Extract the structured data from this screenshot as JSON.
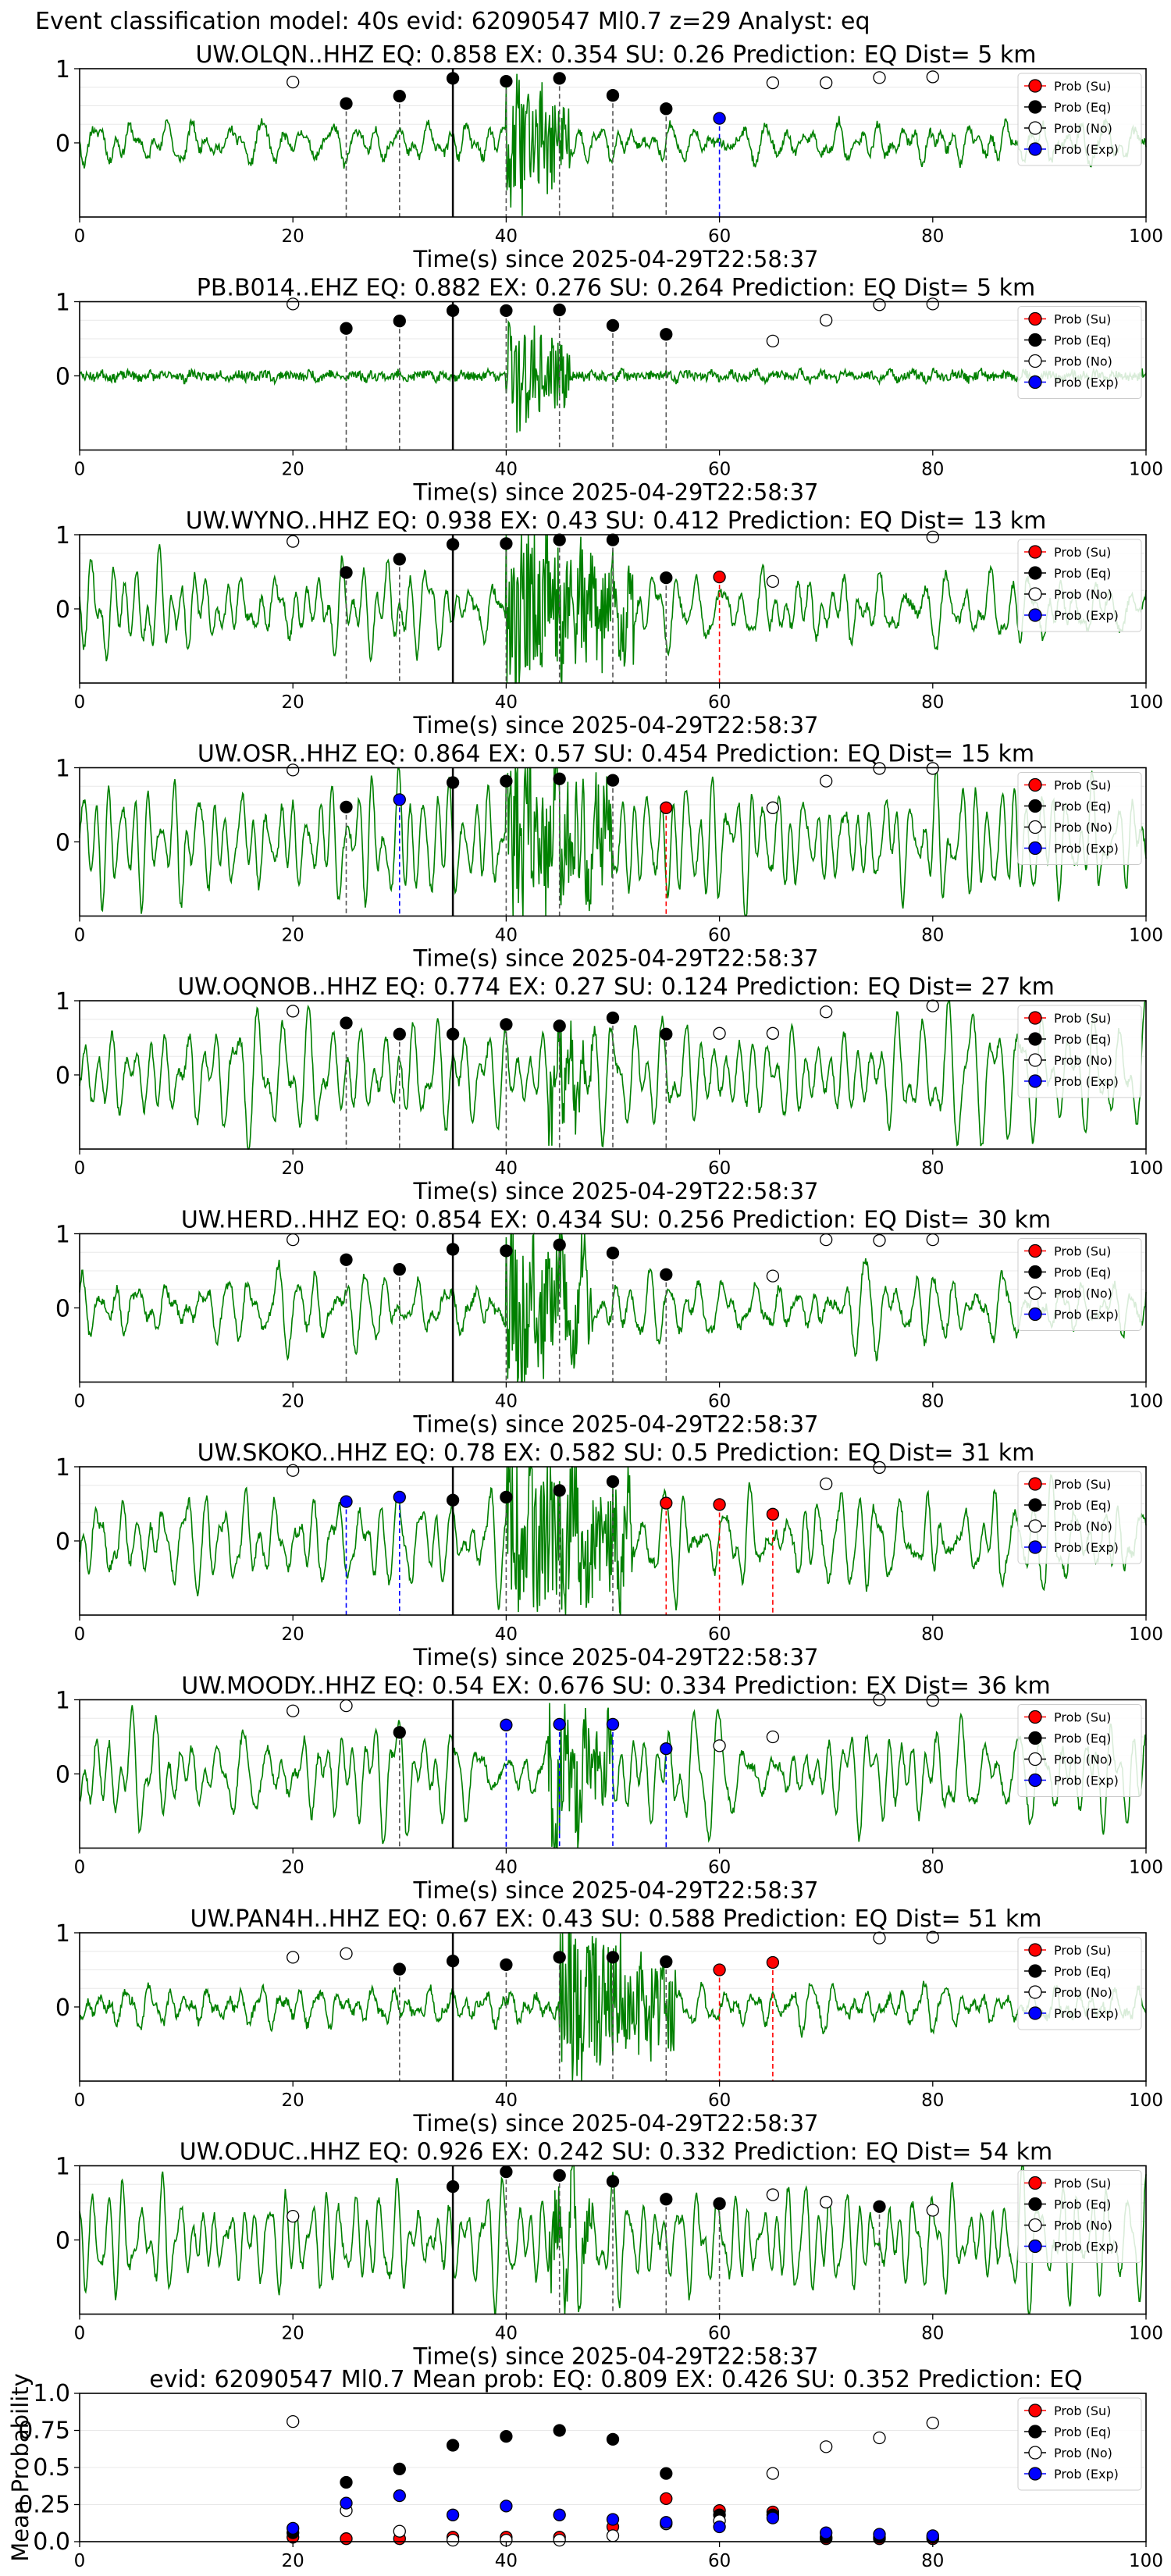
{
  "figure": {
    "suptitle": "Event classification model: 40s evid: 62090547 Ml0.7 z=29 Analyst: eq"
  },
  "legend_labels": [
    "Prob (Su)",
    "Prob (Eq)",
    "Prob (No)",
    "Prob (Exp)"
  ],
  "colors": {
    "su": "#ff0000",
    "eq": "#000000",
    "no": "#ffffff",
    "exp": "#0000ff",
    "waveform": "#008000"
  },
  "chart_data": [
    {
      "type": "line",
      "station": "UW.OLQN..HHZ",
      "title": "UW.OLQN..HHZ   EQ: 0.858  EX: 0.354  SU: 0.26   Prediction: EQ    Dist= 5 km",
      "xlabel": "Time(s) since 2025-04-29T22:58:37",
      "xlim": [
        0,
        100
      ],
      "xticks": [
        0,
        20,
        40,
        60,
        80,
        100
      ],
      "ylim": [
        -1,
        1
      ],
      "yticks": [
        0,
        1
      ],
      "origin_time": 35,
      "burst": [
        40,
        46
      ],
      "noise_level": 0.3,
      "burst_amp": 0.85,
      "seed": 11,
      "points": [
        {
          "t": 20,
          "p": 0.82,
          "c": "no"
        },
        {
          "t": 25,
          "p": 0.53,
          "c": "eq",
          "line": true
        },
        {
          "t": 30,
          "p": 0.63,
          "c": "eq",
          "line": true
        },
        {
          "t": 35,
          "p": 0.87,
          "c": "eq"
        },
        {
          "t": 40,
          "p": 0.83,
          "c": "eq",
          "line": true
        },
        {
          "t": 45,
          "p": 0.87,
          "c": "eq",
          "line": true
        },
        {
          "t": 50,
          "p": 0.64,
          "c": "eq",
          "line": true
        },
        {
          "t": 55,
          "p": 0.46,
          "c": "eq",
          "line": true
        },
        {
          "t": 60,
          "p": 0.33,
          "c": "exp",
          "line": true
        },
        {
          "t": 65,
          "p": 0.81,
          "c": "no"
        },
        {
          "t": 70,
          "p": 0.81,
          "c": "no"
        },
        {
          "t": 75,
          "p": 0.88,
          "c": "no"
        },
        {
          "t": 80,
          "p": 0.89,
          "c": "no"
        }
      ]
    },
    {
      "type": "line",
      "station": "PB.B014..EHZ",
      "title": "PB.B014..EHZ   EQ: 0.882  EX: 0.276  SU: 0.264   Prediction: EQ    Dist= 5 km",
      "xlabel": "Time(s) since 2025-04-29T22:58:37",
      "xlim": [
        0,
        100
      ],
      "xticks": [
        0,
        20,
        40,
        60,
        80,
        100
      ],
      "ylim": [
        -1,
        1
      ],
      "yticks": [
        0,
        1
      ],
      "origin_time": 35,
      "burst": [
        40,
        46
      ],
      "noise_level": 0.05,
      "burst_amp": 0.7,
      "seed": 23,
      "points": [
        {
          "t": 20,
          "p": 0.97,
          "c": "no"
        },
        {
          "t": 25,
          "p": 0.64,
          "c": "eq",
          "line": true
        },
        {
          "t": 30,
          "p": 0.74,
          "c": "eq",
          "line": true
        },
        {
          "t": 35,
          "p": 0.88,
          "c": "eq"
        },
        {
          "t": 40,
          "p": 0.88,
          "c": "eq",
          "line": true
        },
        {
          "t": 45,
          "p": 0.89,
          "c": "eq",
          "line": true
        },
        {
          "t": 50,
          "p": 0.68,
          "c": "eq",
          "line": true
        },
        {
          "t": 55,
          "p": 0.56,
          "c": "eq",
          "line": true
        },
        {
          "t": 65,
          "p": 0.47,
          "c": "no"
        },
        {
          "t": 70,
          "p": 0.75,
          "c": "no"
        },
        {
          "t": 75,
          "p": 0.96,
          "c": "no"
        },
        {
          "t": 80,
          "p": 0.97,
          "c": "no"
        }
      ]
    },
    {
      "type": "line",
      "station": "UW.WYNO..HHZ",
      "title": "UW.WYNO..HHZ   EQ: 0.938  EX: 0.43  SU: 0.412   Prediction: EQ    Dist= 13 km",
      "xlabel": "Time(s) since 2025-04-29T22:58:37",
      "xlim": [
        0,
        100
      ],
      "xticks": [
        0,
        20,
        40,
        60,
        80,
        100
      ],
      "ylim": [
        -1,
        1
      ],
      "yticks": [
        0,
        1
      ],
      "origin_time": 35,
      "burst": [
        40,
        52
      ],
      "noise_level": 0.7,
      "burst_amp": 1.0,
      "seed": 37,
      "points": [
        {
          "t": 20,
          "p": 0.91,
          "c": "no"
        },
        {
          "t": 25,
          "p": 0.49,
          "c": "eq",
          "line": true
        },
        {
          "t": 30,
          "p": 0.67,
          "c": "eq",
          "line": true
        },
        {
          "t": 35,
          "p": 0.87,
          "c": "eq"
        },
        {
          "t": 40,
          "p": 0.88,
          "c": "eq",
          "line": true
        },
        {
          "t": 45,
          "p": 0.93,
          "c": "eq",
          "line": true
        },
        {
          "t": 50,
          "p": 0.93,
          "c": "eq",
          "line": true
        },
        {
          "t": 55,
          "p": 0.42,
          "c": "eq",
          "line": true
        },
        {
          "t": 60,
          "p": 0.43,
          "c": "su",
          "line": true
        },
        {
          "t": 65,
          "p": 0.37,
          "c": "no"
        },
        {
          "t": 80,
          "p": 0.97,
          "c": "no"
        }
      ]
    },
    {
      "type": "line",
      "station": "UW.OSR..HHZ",
      "title": "UW.OSR..HHZ   EQ: 0.864  EX: 0.57  SU: 0.454   Prediction: EQ    Dist= 15 km",
      "xlabel": "Time(s) since 2025-04-29T22:58:37",
      "xlim": [
        0,
        100
      ],
      "xticks": [
        0,
        20,
        40,
        60,
        80,
        100
      ],
      "ylim": [
        -1,
        1
      ],
      "yticks": [
        0,
        1
      ],
      "origin_time": 35,
      "burst": [
        40,
        50
      ],
      "noise_level": 0.75,
      "burst_amp": 0.9,
      "seed": 41,
      "points": [
        {
          "t": 20,
          "p": 0.97,
          "c": "no"
        },
        {
          "t": 25,
          "p": 0.47,
          "c": "eq",
          "line": true
        },
        {
          "t": 30,
          "p": 0.57,
          "c": "exp",
          "line": true
        },
        {
          "t": 35,
          "p": 0.8,
          "c": "eq"
        },
        {
          "t": 40,
          "p": 0.82,
          "c": "eq",
          "line": true
        },
        {
          "t": 45,
          "p": 0.85,
          "c": "eq",
          "line": true
        },
        {
          "t": 50,
          "p": 0.83,
          "c": "eq",
          "line": true
        },
        {
          "t": 55,
          "p": 0.46,
          "c": "su",
          "line": true
        },
        {
          "t": 65,
          "p": 0.46,
          "c": "no"
        },
        {
          "t": 70,
          "p": 0.82,
          "c": "no"
        },
        {
          "t": 75,
          "p": 0.99,
          "c": "no"
        },
        {
          "t": 80,
          "p": 0.99,
          "c": "no"
        }
      ]
    },
    {
      "type": "line",
      "station": "UW.OQNOB..HHZ",
      "title": "UW.OQNOB..HHZ   EQ: 0.774  EX: 0.27  SU: 0.124   Prediction: EQ    Dist= 27 km",
      "xlabel": "Time(s) since 2025-04-29T22:58:37",
      "xlim": [
        0,
        100
      ],
      "xticks": [
        0,
        20,
        40,
        60,
        80,
        100
      ],
      "ylim": [
        -1,
        1
      ],
      "yticks": [
        0,
        1
      ],
      "origin_time": 35,
      "burst": [
        44,
        48
      ],
      "noise_level": 0.8,
      "burst_amp": 0.6,
      "seed": 53,
      "points": [
        {
          "t": 20,
          "p": 0.86,
          "c": "no"
        },
        {
          "t": 25,
          "p": 0.7,
          "c": "eq",
          "line": true
        },
        {
          "t": 30,
          "p": 0.55,
          "c": "eq",
          "line": true
        },
        {
          "t": 35,
          "p": 0.55,
          "c": "eq"
        },
        {
          "t": 40,
          "p": 0.68,
          "c": "eq",
          "line": true
        },
        {
          "t": 45,
          "p": 0.66,
          "c": "eq",
          "line": true
        },
        {
          "t": 50,
          "p": 0.77,
          "c": "eq",
          "line": true
        },
        {
          "t": 55,
          "p": 0.55,
          "c": "eq",
          "line": true
        },
        {
          "t": 60,
          "p": 0.56,
          "c": "no"
        },
        {
          "t": 65,
          "p": 0.56,
          "c": "no"
        },
        {
          "t": 70,
          "p": 0.85,
          "c": "no"
        },
        {
          "t": 80,
          "p": 0.93,
          "c": "no"
        }
      ]
    },
    {
      "type": "line",
      "station": "UW.HERD..HHZ",
      "title": "UW.HERD..HHZ   EQ: 0.854  EX: 0.434  SU: 0.256   Prediction: EQ    Dist= 30 km",
      "xlabel": "Time(s) since 2025-04-29T22:58:37",
      "xlim": [
        0,
        100
      ],
      "xticks": [
        0,
        20,
        40,
        60,
        80,
        100
      ],
      "ylim": [
        -1,
        1
      ],
      "yticks": [
        0,
        1
      ],
      "origin_time": 35,
      "burst": [
        40,
        48
      ],
      "noise_level": 0.55,
      "burst_amp": 0.9,
      "seed": 67,
      "points": [
        {
          "t": 20,
          "p": 0.92,
          "c": "no"
        },
        {
          "t": 25,
          "p": 0.65,
          "c": "eq",
          "line": true
        },
        {
          "t": 30,
          "p": 0.52,
          "c": "eq",
          "line": true
        },
        {
          "t": 35,
          "p": 0.79,
          "c": "eq"
        },
        {
          "t": 40,
          "p": 0.77,
          "c": "eq",
          "line": true
        },
        {
          "t": 45,
          "p": 0.85,
          "c": "eq",
          "line": true
        },
        {
          "t": 50,
          "p": 0.74,
          "c": "eq",
          "line": true
        },
        {
          "t": 55,
          "p": 0.45,
          "c": "eq",
          "line": true
        },
        {
          "t": 65,
          "p": 0.43,
          "c": "no"
        },
        {
          "t": 70,
          "p": 0.92,
          "c": "no"
        },
        {
          "t": 75,
          "p": 0.91,
          "c": "no"
        },
        {
          "t": 80,
          "p": 0.92,
          "c": "no"
        }
      ]
    },
    {
      "type": "line",
      "station": "UW.SKOKO..HHZ",
      "title": "UW.SKOKO..HHZ   EQ: 0.78  EX: 0.582  SU: 0.5   Prediction: EQ    Dist= 31 km",
      "xlabel": "Time(s) since 2025-04-29T22:58:37",
      "xlim": [
        0,
        100
      ],
      "xticks": [
        0,
        20,
        40,
        60,
        80,
        100
      ],
      "ylim": [
        -1,
        1
      ],
      "yticks": [
        0,
        1
      ],
      "origin_time": 35,
      "burst": [
        40,
        52
      ],
      "noise_level": 0.7,
      "burst_amp": 1.0,
      "seed": 79,
      "points": [
        {
          "t": 20,
          "p": 0.95,
          "c": "no"
        },
        {
          "t": 25,
          "p": 0.53,
          "c": "exp",
          "line": true
        },
        {
          "t": 30,
          "p": 0.59,
          "c": "exp",
          "line": true
        },
        {
          "t": 35,
          "p": 0.55,
          "c": "eq"
        },
        {
          "t": 40,
          "p": 0.59,
          "c": "eq",
          "line": true
        },
        {
          "t": 45,
          "p": 0.68,
          "c": "eq",
          "line": true
        },
        {
          "t": 50,
          "p": 0.8,
          "c": "eq",
          "line": true
        },
        {
          "t": 55,
          "p": 0.51,
          "c": "su",
          "line": true
        },
        {
          "t": 60,
          "p": 0.49,
          "c": "su",
          "line": true
        },
        {
          "t": 65,
          "p": 0.36,
          "c": "su",
          "line": true
        },
        {
          "t": 70,
          "p": 0.77,
          "c": "no"
        },
        {
          "t": 75,
          "p": 0.99,
          "c": "no"
        }
      ]
    },
    {
      "type": "line",
      "station": "UW.MOODY..HHZ",
      "title": "UW.MOODY..HHZ   EQ: 0.54  EX: 0.676  SU: 0.334   Prediction: EX    Dist= 36 km",
      "xlabel": "Time(s) since 2025-04-29T22:58:37",
      "xlim": [
        0,
        100
      ],
      "xticks": [
        0,
        20,
        40,
        60,
        80,
        100
      ],
      "ylim": [
        -1,
        1
      ],
      "yticks": [
        0,
        1
      ],
      "origin_time": 35,
      "burst": [
        44,
        50
      ],
      "noise_level": 0.75,
      "burst_amp": 0.8,
      "seed": 83,
      "points": [
        {
          "t": 20,
          "p": 0.85,
          "c": "no"
        },
        {
          "t": 25,
          "p": 0.92,
          "c": "no"
        },
        {
          "t": 30,
          "p": 0.56,
          "c": "eq",
          "line": true
        },
        {
          "t": 40,
          "p": 0.66,
          "c": "exp",
          "line": true
        },
        {
          "t": 45,
          "p": 0.67,
          "c": "exp",
          "line": true
        },
        {
          "t": 50,
          "p": 0.67,
          "c": "exp",
          "line": true
        },
        {
          "t": 55,
          "p": 0.34,
          "c": "exp",
          "line": true
        },
        {
          "t": 60,
          "p": 0.38,
          "c": "no"
        },
        {
          "t": 65,
          "p": 0.5,
          "c": "no"
        },
        {
          "t": 75,
          "p": 1.0,
          "c": "no"
        },
        {
          "t": 80,
          "p": 0.99,
          "c": "no"
        }
      ]
    },
    {
      "type": "line",
      "station": "UW.PAN4H..HHZ",
      "title": "UW.PAN4H..HHZ   EQ: 0.67  EX: 0.43  SU: 0.588   Prediction: EQ    Dist= 51 km",
      "xlabel": "Time(s) since 2025-04-29T22:58:37",
      "xlim": [
        0,
        100
      ],
      "xticks": [
        0,
        20,
        40,
        60,
        80,
        100
      ],
      "ylim": [
        -1,
        1
      ],
      "yticks": [
        0,
        1
      ],
      "origin_time": 35,
      "burst": [
        45,
        56
      ],
      "noise_level": 0.3,
      "burst_amp": 1.0,
      "seed": 97,
      "points": [
        {
          "t": 20,
          "p": 0.67,
          "c": "no"
        },
        {
          "t": 25,
          "p": 0.72,
          "c": "no"
        },
        {
          "t": 30,
          "p": 0.51,
          "c": "eq",
          "line": true
        },
        {
          "t": 35,
          "p": 0.62,
          "c": "eq"
        },
        {
          "t": 40,
          "p": 0.57,
          "c": "eq",
          "line": true
        },
        {
          "t": 45,
          "p": 0.67,
          "c": "eq",
          "line": true
        },
        {
          "t": 50,
          "p": 0.67,
          "c": "eq",
          "line": true
        },
        {
          "t": 55,
          "p": 0.61,
          "c": "eq",
          "line": true
        },
        {
          "t": 60,
          "p": 0.5,
          "c": "su",
          "line": true
        },
        {
          "t": 65,
          "p": 0.6,
          "c": "su",
          "line": true
        },
        {
          "t": 75,
          "p": 0.93,
          "c": "no"
        },
        {
          "t": 80,
          "p": 0.94,
          "c": "no"
        }
      ]
    },
    {
      "type": "line",
      "station": "UW.ODUC..HHZ",
      "title": "UW.ODUC..HHZ   EQ: 0.926  EX: 0.242  SU: 0.332   Prediction: EQ    Dist= 54 km",
      "xlabel": "Time(s) since 2025-04-29T22:58:37",
      "xlim": [
        0,
        100
      ],
      "xticks": [
        0,
        20,
        40,
        60,
        80,
        100
      ],
      "ylim": [
        -1,
        1
      ],
      "yticks": [
        0,
        1
      ],
      "origin_time": 35,
      "burst": [
        44,
        48
      ],
      "noise_level": 0.85,
      "burst_amp": 0.5,
      "seed": 101,
      "points": [
        {
          "t": 20,
          "p": 0.32,
          "c": "no"
        },
        {
          "t": 35,
          "p": 0.72,
          "c": "eq"
        },
        {
          "t": 40,
          "p": 0.92,
          "c": "eq",
          "line": true
        },
        {
          "t": 45,
          "p": 0.87,
          "c": "eq",
          "line": true
        },
        {
          "t": 50,
          "p": 0.79,
          "c": "eq",
          "line": true
        },
        {
          "t": 55,
          "p": 0.55,
          "c": "eq",
          "line": true
        },
        {
          "t": 60,
          "p": 0.49,
          "c": "eq",
          "line": true
        },
        {
          "t": 65,
          "p": 0.61,
          "c": "no"
        },
        {
          "t": 70,
          "p": 0.51,
          "c": "no"
        },
        {
          "t": 75,
          "p": 0.45,
          "c": "eq",
          "line": true
        },
        {
          "t": 80,
          "p": 0.4,
          "c": "no"
        }
      ]
    },
    {
      "type": "scatter",
      "title": "evid: 62090547   Ml0.7   Mean prob:   EQ: 0.809  EX: 0.426  SU: 0.352   Prediction: EQ",
      "ylabel": "Mean Probability",
      "xlim": [
        0,
        100
      ],
      "xticks": [
        0,
        20,
        40,
        60,
        80,
        100
      ],
      "ylim": [
        0,
        1.0
      ],
      "yticks": [
        0.0,
        0.25,
        0.5,
        0.75,
        1.0
      ],
      "ytick_labels": [
        "0.0",
        "0.25",
        "0.5",
        "0.75",
        "1.0"
      ],
      "x": [
        20,
        25,
        30,
        35,
        40,
        45,
        50,
        55,
        60,
        65,
        70,
        75,
        80
      ],
      "series": [
        {
          "name": "Prob (Su)",
          "key": "su",
          "values": [
            0.03,
            0.02,
            0.02,
            0.03,
            0.03,
            0.03,
            0.1,
            0.29,
            0.21,
            0.2,
            0.02,
            0.02,
            0.02
          ]
        },
        {
          "name": "Prob (Eq)",
          "key": "eq",
          "values": [
            0.06,
            0.4,
            0.49,
            0.65,
            0.71,
            0.75,
            0.69,
            0.46,
            0.18,
            0.18,
            0.03,
            0.03,
            0.03
          ]
        },
        {
          "name": "Prob (No)",
          "key": "no",
          "values": [
            0.81,
            0.21,
            0.07,
            0.01,
            0.01,
            0.01,
            0.04,
            0.12,
            0.14,
            0.46,
            0.64,
            0.7,
            0.8
          ]
        },
        {
          "name": "Prob (Exp)",
          "key": "exp",
          "values": [
            0.09,
            0.26,
            0.31,
            0.18,
            0.24,
            0.18,
            0.15,
            0.13,
            0.1,
            0.16,
            0.06,
            0.05,
            0.04
          ]
        }
      ]
    }
  ]
}
